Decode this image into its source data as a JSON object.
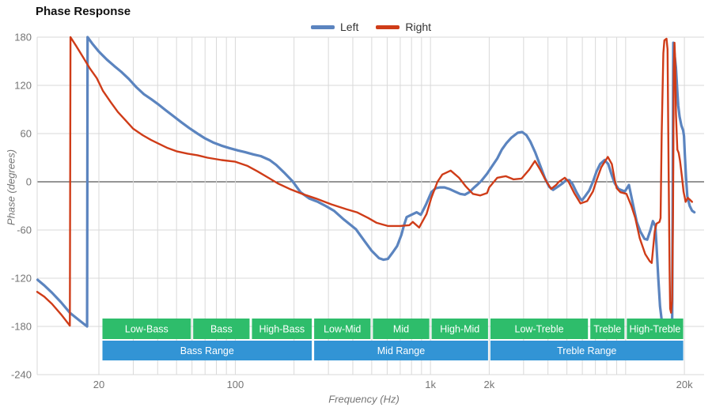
{
  "header": {
    "title": "Phase Response"
  },
  "legend": {
    "items": [
      {
        "label": "Left",
        "color": "#5b84bf"
      },
      {
        "label": "Right",
        "color": "#cf3c18"
      }
    ]
  },
  "chart_data": {
    "type": "line",
    "title": "Phase Response",
    "xlabel": "Frequency (Hz)",
    "ylabel": "Phase (degrees)",
    "x_scale": "log",
    "xlim": [
      9.66,
      25200
    ],
    "ylim": [
      -240,
      180
    ],
    "grid": true,
    "legend_position": "top-center",
    "colors": {
      "grid": "#d9d9d9",
      "zero_line": "#2b2b2b",
      "tick_text": "#757575",
      "band_sub": "#2ebd6b",
      "band_main": "#3294d5",
      "band_text": "#ffffff"
    },
    "y_ticks": [
      180,
      120,
      60,
      0,
      -60,
      -120,
      -180,
      -240
    ],
    "x_ticks": [
      {
        "value": 20,
        "label": "20"
      },
      {
        "value": 100,
        "label": "100"
      },
      {
        "value": 1000,
        "label": "1k"
      },
      {
        "value": 2000,
        "label": "2k"
      },
      {
        "value": 20000,
        "label": "20k"
      }
    ],
    "x_gridlines": [
      20,
      30,
      40,
      50,
      60,
      70,
      80,
      90,
      100,
      200,
      300,
      400,
      500,
      600,
      700,
      800,
      900,
      1000,
      2000,
      3000,
      4000,
      5000,
      6000,
      7000,
      8000,
      9000,
      10000,
      20000
    ],
    "bands": {
      "sub_row": [
        {
          "label": "Low-Bass",
          "from": 20,
          "to": 60
        },
        {
          "label": "Bass",
          "from": 60,
          "to": 120
        },
        {
          "label": "High-Bass",
          "from": 120,
          "to": 250
        },
        {
          "label": "Low-Mid",
          "from": 250,
          "to": 500
        },
        {
          "label": "Mid",
          "from": 500,
          "to": 1000
        },
        {
          "label": "High-Mid",
          "from": 1000,
          "to": 2000
        },
        {
          "label": "Low-Treble",
          "from": 2000,
          "to": 6500
        },
        {
          "label": "Treble",
          "from": 6500,
          "to": 10000
        },
        {
          "label": "High-Treble",
          "from": 10000,
          "to": 20000
        }
      ],
      "main_row": [
        {
          "label": "Bass Range",
          "from": 20,
          "to": 250
        },
        {
          "label": "Mid Range",
          "from": 250,
          "to": 2000
        },
        {
          "label": "Treble Range",
          "from": 2000,
          "to": 20000
        }
      ]
    },
    "series": [
      {
        "name": "Left",
        "color": "#5b84bf",
        "width": 3.2,
        "points": [
          [
            9.7,
            -122
          ],
          [
            10.5,
            -129
          ],
          [
            11.5,
            -138
          ],
          [
            12.8,
            -150
          ],
          [
            14.2,
            -163
          ],
          [
            15.8,
            -172
          ],
          [
            17.4,
            -180
          ],
          [
            17.5,
            180
          ],
          [
            18.5,
            172
          ],
          [
            20,
            162
          ],
          [
            22,
            152
          ],
          [
            24,
            144
          ],
          [
            26,
            137
          ],
          [
            28.5,
            128
          ],
          [
            31,
            118
          ],
          [
            34,
            109
          ],
          [
            37,
            103
          ],
          [
            40,
            97
          ],
          [
            44,
            89
          ],
          [
            48,
            82
          ],
          [
            53,
            74
          ],
          [
            58,
            67
          ],
          [
            64,
            60
          ],
          [
            70,
            54
          ],
          [
            77,
            49
          ],
          [
            85,
            45
          ],
          [
            93,
            42
          ],
          [
            103,
            39
          ],
          [
            112,
            37
          ],
          [
            124,
            34
          ],
          [
            135,
            32
          ],
          [
            150,
            27
          ],
          [
            162,
            21
          ],
          [
            177,
            12
          ],
          [
            196,
            1
          ],
          [
            216,
            -13
          ],
          [
            240,
            -21
          ],
          [
            265,
            -25
          ],
          [
            290,
            -30
          ],
          [
            320,
            -36
          ],
          [
            360,
            -47
          ],
          [
            415,
            -59
          ],
          [
            460,
            -74
          ],
          [
            500,
            -86
          ],
          [
            545,
            -95
          ],
          [
            575,
            -97
          ],
          [
            605,
            -96
          ],
          [
            640,
            -88
          ],
          [
            675,
            -80
          ],
          [
            710,
            -66
          ],
          [
            730,
            -55
          ],
          [
            755,
            -44
          ],
          [
            800,
            -41
          ],
          [
            850,
            -38
          ],
          [
            893,
            -41
          ],
          [
            950,
            -28
          ],
          [
            1010,
            -13
          ],
          [
            1065,
            -8
          ],
          [
            1120,
            -7
          ],
          [
            1180,
            -7
          ],
          [
            1250,
            -9
          ],
          [
            1330,
            -12
          ],
          [
            1420,
            -15
          ],
          [
            1500,
            -16
          ],
          [
            1580,
            -13
          ],
          [
            1660,
            -8
          ],
          [
            1750,
            -3
          ],
          [
            1820,
            1
          ],
          [
            1950,
            10
          ],
          [
            2050,
            18
          ],
          [
            2200,
            29
          ],
          [
            2320,
            40
          ],
          [
            2450,
            48
          ],
          [
            2600,
            55
          ],
          [
            2800,
            61
          ],
          [
            2950,
            62
          ],
          [
            3100,
            58
          ],
          [
            3250,
            50
          ],
          [
            3450,
            36
          ],
          [
            3650,
            20
          ],
          [
            3850,
            5
          ],
          [
            4050,
            -6
          ],
          [
            4250,
            -10
          ],
          [
            4500,
            -6
          ],
          [
            4750,
            -2
          ],
          [
            4950,
            2
          ],
          [
            5150,
            2
          ],
          [
            5350,
            -3
          ],
          [
            5600,
            -13
          ],
          [
            5850,
            -21
          ],
          [
            5980,
            -23
          ],
          [
            6200,
            -18
          ],
          [
            6500,
            -11
          ],
          [
            6800,
            0
          ],
          [
            7100,
            13
          ],
          [
            7400,
            22
          ],
          [
            7800,
            27
          ],
          [
            8150,
            22
          ],
          [
            8500,
            8
          ],
          [
            8800,
            -2
          ],
          [
            9200,
            -9
          ],
          [
            9900,
            -12
          ],
          [
            10400,
            -4
          ],
          [
            10900,
            -28
          ],
          [
            11400,
            -50
          ],
          [
            11900,
            -62
          ],
          [
            12500,
            -71
          ],
          [
            12900,
            -72
          ],
          [
            13400,
            -60
          ],
          [
            13800,
            -49
          ],
          [
            14200,
            -55
          ],
          [
            14400,
            -80
          ],
          [
            14700,
            -120
          ],
          [
            15000,
            -155
          ],
          [
            15300,
            -172
          ],
          [
            15600,
            -182
          ],
          [
            15900,
            -188
          ],
          [
            17300,
            -188
          ],
          [
            17550,
            173
          ],
          [
            18100,
            142
          ],
          [
            18400,
            112
          ],
          [
            18600,
            95
          ],
          [
            18900,
            81
          ],
          [
            19300,
            70
          ],
          [
            19700,
            64
          ],
          [
            19900,
            57
          ],
          [
            20100,
            35
          ],
          [
            20400,
            5
          ],
          [
            20700,
            -18
          ],
          [
            21300,
            -30
          ],
          [
            21900,
            -36
          ],
          [
            22500,
            -38
          ]
        ]
      },
      {
        "name": "Right",
        "color": "#cf3c18",
        "width": 2.4,
        "points": [
          [
            9.66,
            -137
          ],
          [
            10.5,
            -143
          ],
          [
            11.5,
            -152
          ],
          [
            12.8,
            -165
          ],
          [
            14.2,
            -179
          ],
          [
            14.3,
            180
          ],
          [
            15.3,
            169
          ],
          [
            16.5,
            156
          ],
          [
            18,
            141
          ],
          [
            19.5,
            129
          ],
          [
            21,
            113
          ],
          [
            23,
            99
          ],
          [
            25,
            87
          ],
          [
            27.5,
            76
          ],
          [
            30,
            66
          ],
          [
            33.5,
            58
          ],
          [
            37,
            52
          ],
          [
            40,
            48
          ],
          [
            45,
            42
          ],
          [
            50,
            38
          ],
          [
            57,
            35
          ],
          [
            64,
            33
          ],
          [
            72,
            30
          ],
          [
            85,
            27
          ],
          [
            100,
            25
          ],
          [
            115,
            20
          ],
          [
            130,
            13
          ],
          [
            150,
            4
          ],
          [
            165,
            -2
          ],
          [
            190,
            -9
          ],
          [
            220,
            -15
          ],
          [
            260,
            -21
          ],
          [
            310,
            -28
          ],
          [
            370,
            -34
          ],
          [
            420,
            -38
          ],
          [
            480,
            -45
          ],
          [
            530,
            -51
          ],
          [
            565,
            -53
          ],
          [
            605,
            -55
          ],
          [
            700,
            -55
          ],
          [
            780,
            -54
          ],
          [
            812,
            -50
          ],
          [
            875,
            -57
          ],
          [
            955,
            -40
          ],
          [
            1010,
            -20
          ],
          [
            1086,
            0
          ],
          [
            1150,
            9
          ],
          [
            1270,
            14
          ],
          [
            1400,
            5
          ],
          [
            1520,
            -6
          ],
          [
            1650,
            -15
          ],
          [
            1800,
            -17
          ],
          [
            1950,
            -14
          ],
          [
            2000,
            -7
          ],
          [
            2200,
            5
          ],
          [
            2430,
            7
          ],
          [
            2660,
            3
          ],
          [
            2930,
            4
          ],
          [
            3200,
            15
          ],
          [
            3430,
            26
          ],
          [
            3650,
            15
          ],
          [
            3890,
            2
          ],
          [
            4150,
            -9
          ],
          [
            4400,
            -4
          ],
          [
            4550,
            0
          ],
          [
            4880,
            5
          ],
          [
            5100,
            0
          ],
          [
            5450,
            -14
          ],
          [
            5870,
            -27
          ],
          [
            6350,
            -24
          ],
          [
            6800,
            -12
          ],
          [
            7100,
            2
          ],
          [
            7500,
            18
          ],
          [
            8100,
            31
          ],
          [
            8500,
            22
          ],
          [
            8800,
            2
          ],
          [
            9000,
            -8
          ],
          [
            9400,
            -13
          ],
          [
            10100,
            -15
          ],
          [
            10700,
            -30
          ],
          [
            11200,
            -45
          ],
          [
            11800,
            -70
          ],
          [
            12600,
            -90
          ],
          [
            13300,
            -99
          ],
          [
            13600,
            -101
          ],
          [
            14100,
            -62
          ],
          [
            14400,
            -52
          ],
          [
            14900,
            -50
          ],
          [
            15100,
            -45
          ],
          [
            15300,
            60
          ],
          [
            15600,
            160
          ],
          [
            15800,
            176
          ],
          [
            16200,
            178
          ],
          [
            16400,
            165
          ],
          [
            16600,
            20
          ],
          [
            16800,
            -110
          ],
          [
            16900,
            -158
          ],
          [
            17100,
            -163
          ],
          [
            17300,
            -148
          ],
          [
            17500,
            -30
          ],
          [
            17650,
            140
          ],
          [
            17800,
            173
          ],
          [
            17950,
            150
          ],
          [
            18100,
            85
          ],
          [
            18400,
            40
          ],
          [
            18700,
            36
          ],
          [
            19000,
            26
          ],
          [
            19400,
            8
          ],
          [
            19800,
            -12
          ],
          [
            20300,
            -25
          ],
          [
            20800,
            -20
          ],
          [
            21300,
            -22
          ],
          [
            21900,
            -25
          ]
        ]
      }
    ]
  }
}
